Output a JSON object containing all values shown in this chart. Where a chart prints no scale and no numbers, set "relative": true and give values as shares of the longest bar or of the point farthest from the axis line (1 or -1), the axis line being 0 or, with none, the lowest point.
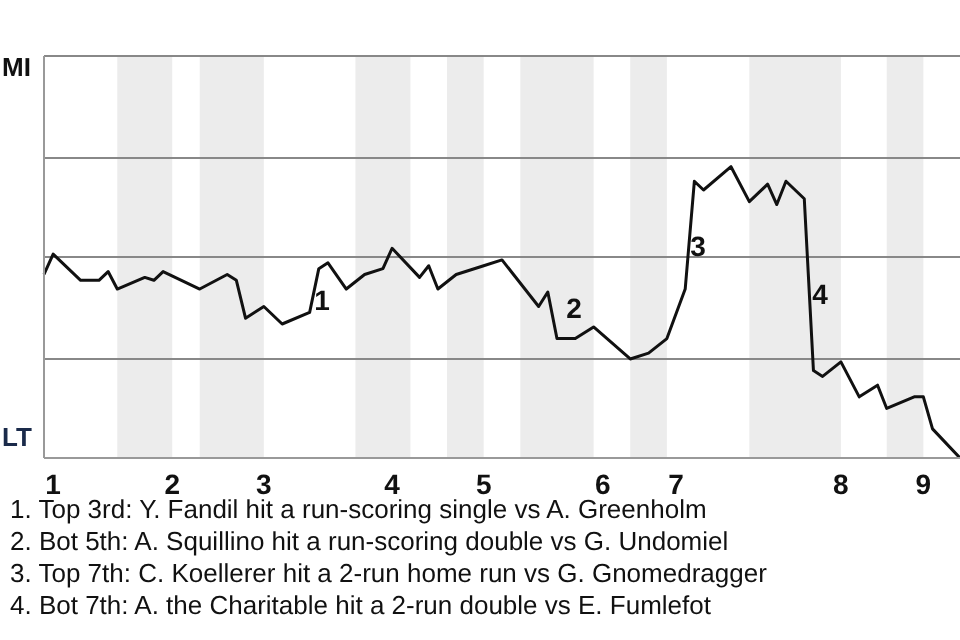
{
  "chart_data": {
    "type": "line",
    "relative": true,
    "categories": [
      null,
      "1",
      null,
      null,
      null,
      null,
      null,
      null,
      null,
      null,
      null,
      null,
      null,
      null,
      "2",
      null,
      null,
      null,
      null,
      null,
      null,
      null,
      null,
      null,
      "3",
      null,
      null,
      null,
      null,
      null,
      null,
      null,
      null,
      null,
      null,
      null,
      null,
      null,
      "4",
      null,
      null,
      null,
      null,
      null,
      null,
      null,
      null,
      null,
      "5",
      null,
      null,
      null,
      null,
      null,
      null,
      null,
      null,
      null,
      null,
      null,
      null,
      "6",
      null,
      null,
      null,
      null,
      null,
      null,
      null,
      "7",
      null,
      null,
      null,
      null,
      null,
      null,
      null,
      null,
      null,
      null,
      null,
      null,
      null,
      null,
      null,
      null,
      null,
      "8",
      null,
      null,
      null,
      null,
      null,
      null,
      null,
      null,
      "9",
      null,
      null,
      null,
      null
    ],
    "series": [
      {
        "color": "#111111",
        "values": [
          0.63,
          0.7,
          null,
          null,
          0.61,
          null,
          0.61,
          0.64,
          0.58,
          null,
          null,
          0.62,
          0.61,
          0.64,
          null,
          null,
          null,
          0.58,
          null,
          null,
          0.63,
          0.61,
          0.48,
          null,
          0.52,
          null,
          0.46,
          null,
          null,
          0.5,
          0.65,
          0.67,
          null,
          0.58,
          null,
          0.63,
          null,
          0.65,
          0.72,
          null,
          null,
          0.62,
          0.66,
          0.58,
          null,
          0.63,
          null,
          null,
          0.66,
          null,
          0.68,
          null,
          null,
          null,
          0.52,
          0.57,
          0.41,
          null,
          0.41,
          null,
          0.45,
          null,
          null,
          null,
          0.34,
          null,
          0.36,
          null,
          0.41,
          null,
          0.58,
          0.95,
          0.92,
          null,
          null,
          1,
          null,
          0.88,
          null,
          0.94,
          0.87,
          0.95,
          null,
          0.89,
          0.3,
          0.28,
          null,
          0.33,
          null,
          0.21,
          null,
          0.25,
          0.17,
          null,
          null,
          0.21,
          0.21,
          0.1,
          null,
          null,
          0
        ]
      }
    ],
    "ref_lines": [
      {
        "axis": "y",
        "value": 0.34,
        "color": "#888888"
      },
      {
        "axis": "y",
        "value": 0.69,
        "color": "#888888"
      },
      {
        "axis": "y",
        "value": 1.03,
        "color": "#888888"
      }
    ],
    "marker": "none",
    "line_style": "solid",
    "legend": false,
    "annotations": [
      "MI",
      "LT",
      "1",
      "2",
      "3",
      "4",
      "1. Top 3rd: Y. Fandil hit a run-scoring single vs A. Greenholm",
      "2. Bot 5th: A. Squillino hit a run-scoring double vs G. Undomiel",
      "3. Top 7th: C. Koellerer hit a 2-run home run vs G. Gnomedragger",
      "4. Bot 7th: A. the Charitable hit a 2-run double vs E. Fumlefot"
    ]
  }
}
